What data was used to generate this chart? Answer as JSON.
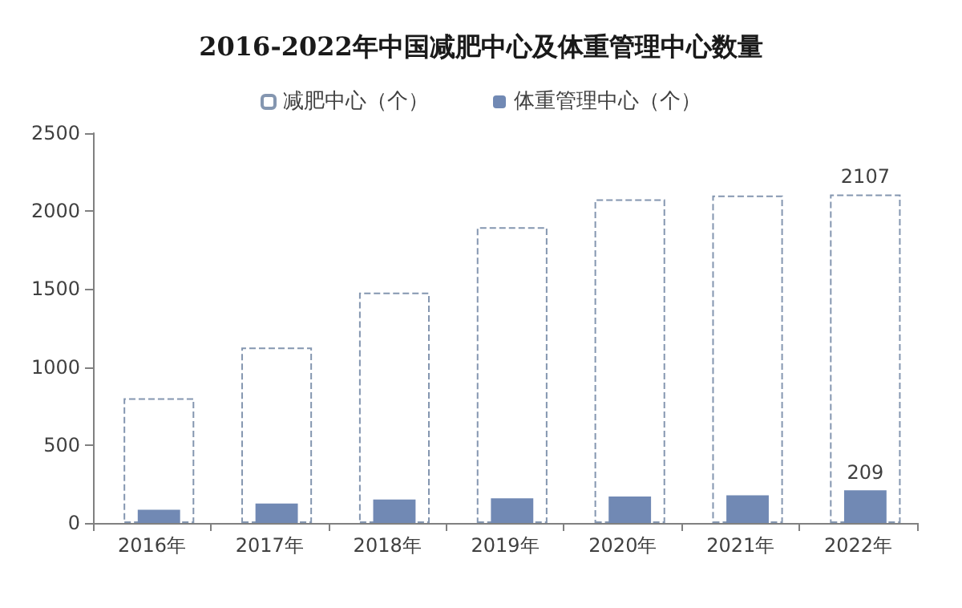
{
  "chart_data": {
    "type": "bar",
    "title": "2016-2022年中国减肥中心及体重管理中心数量",
    "categories": [
      "2016年",
      "2017年",
      "2018年",
      "2019年",
      "2020年",
      "2021年",
      "2022年"
    ],
    "series": [
      {
        "name": "减肥中心（个）",
        "color": "#8496b0",
        "line_style": "dashed",
        "values": [
          800,
          1125,
          1477,
          1897,
          2075,
          2100,
          2107
        ],
        "value_labels": [
          null,
          null,
          null,
          null,
          null,
          null,
          "2107"
        ]
      },
      {
        "name": "体重管理中心（个）",
        "color": "#7189b4",
        "values": [
          85,
          125,
          150,
          158,
          170,
          178,
          209
        ],
        "value_labels": [
          null,
          null,
          null,
          null,
          null,
          null,
          "209"
        ]
      }
    ],
    "ylim": [
      0,
      2500
    ],
    "yticks": [
      0,
      500,
      1000,
      1500,
      2000,
      2500
    ],
    "grid": false,
    "legend": "top"
  }
}
